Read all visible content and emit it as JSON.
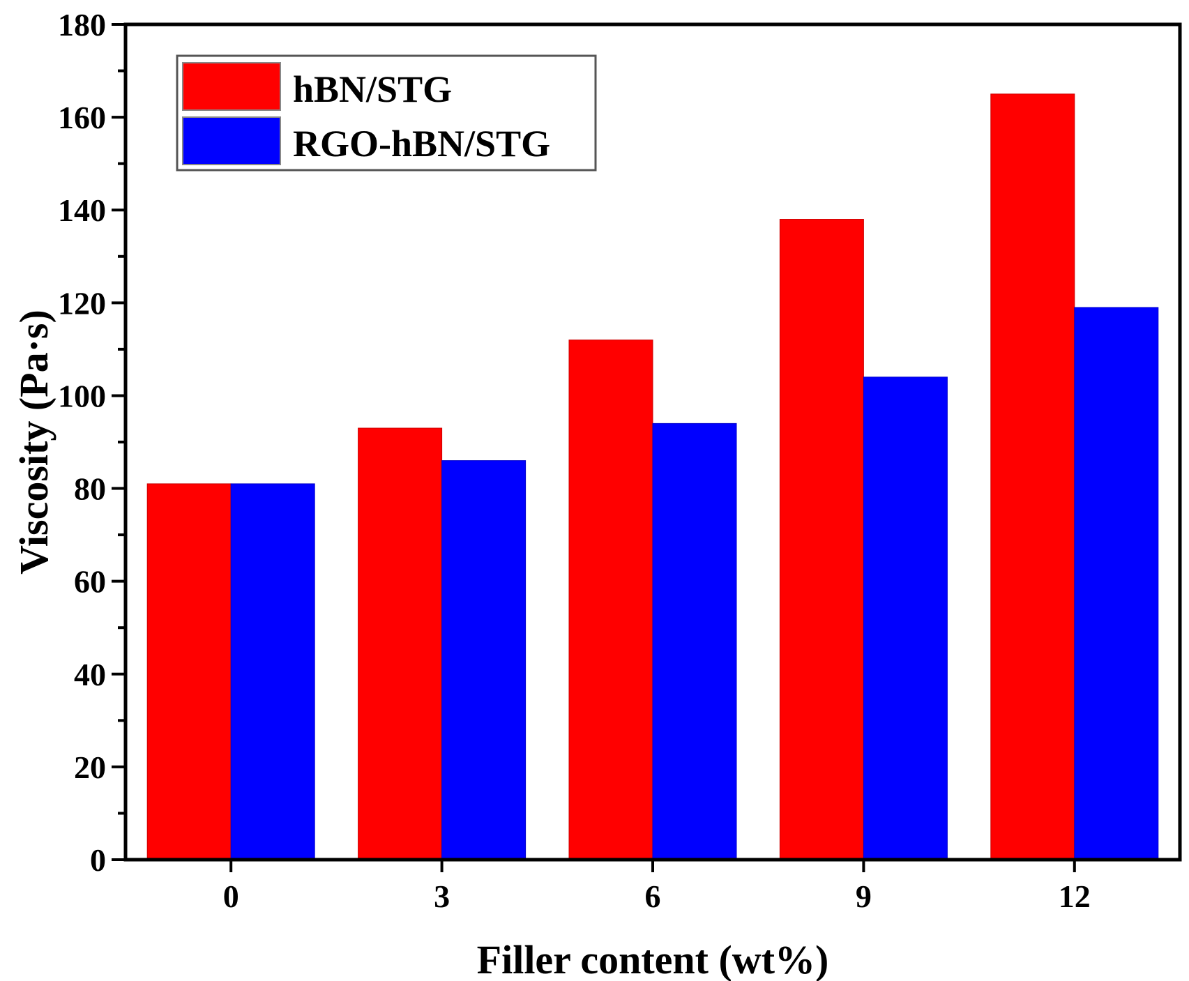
{
  "chart_data": {
    "type": "bar",
    "xlabel": "Filler content (wt%)",
    "ylabel": "Viscosity (Pa·s)",
    "categories": [
      "0",
      "3",
      "6",
      "9",
      "12"
    ],
    "ylim": [
      0,
      180
    ],
    "yticks": [
      "0",
      "20",
      "40",
      "60",
      "80",
      "100",
      "120",
      "140",
      "160",
      "180"
    ],
    "series": [
      {
        "name": "hBN/STG",
        "color": "#ff0000",
        "values": [
          81,
          93,
          112,
          138,
          165
        ]
      },
      {
        "name": "RGO-hBN/STG",
        "color": "#0000ff",
        "values": [
          81,
          86,
          94,
          104,
          119
        ]
      }
    ],
    "legend": "top-left",
    "grid": false
  }
}
